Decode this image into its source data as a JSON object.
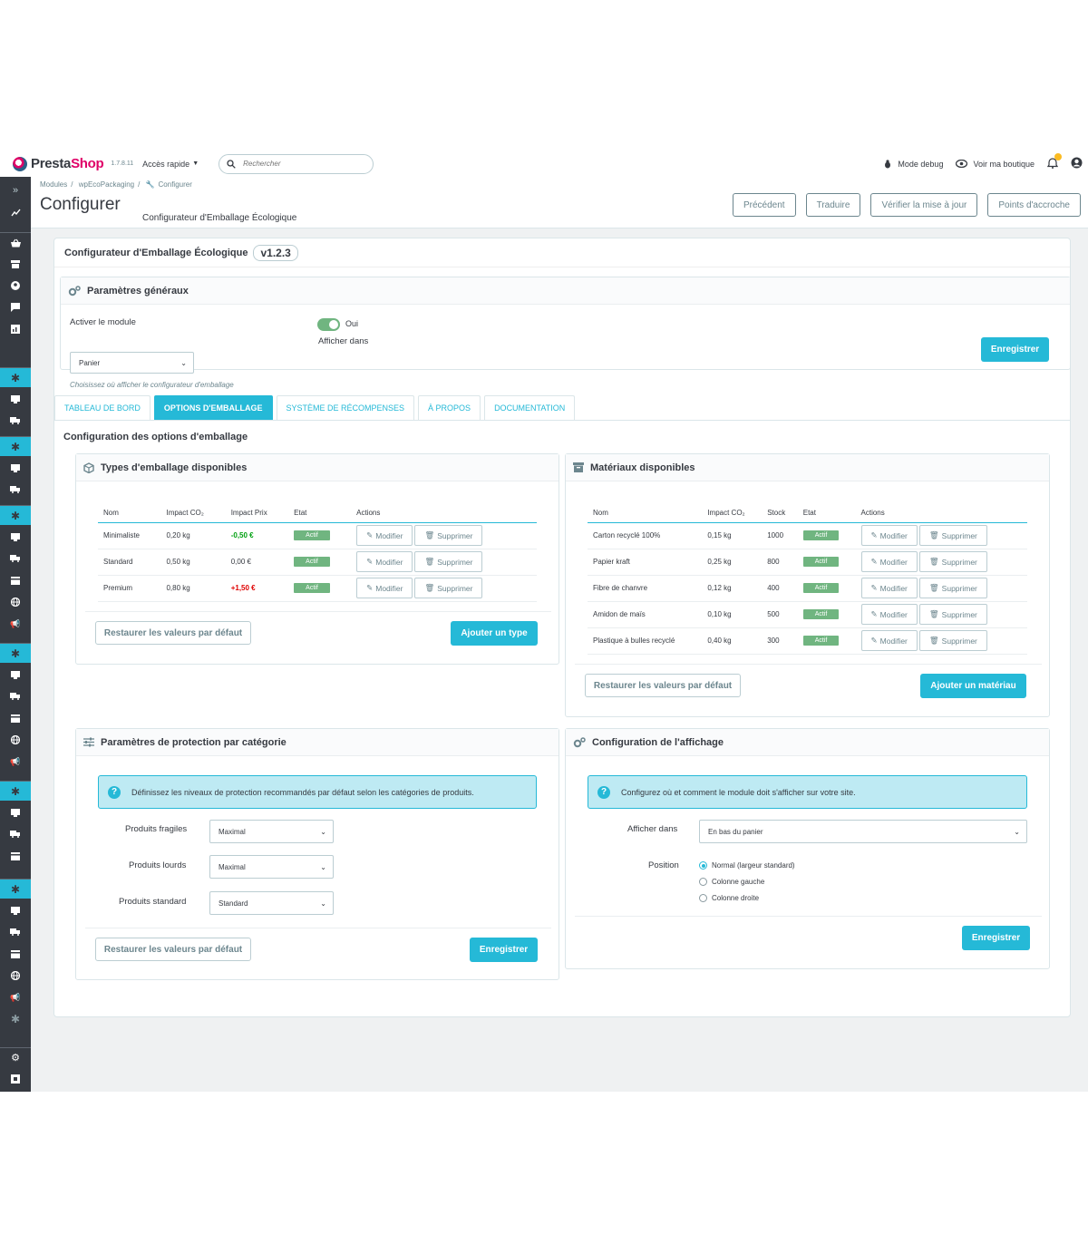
{
  "header": {
    "brand_a": "Presta",
    "brand_b": "Shop",
    "version": "1.7.8.11",
    "quick_access": "Accès rapide",
    "search_placeholder": "Rechercher",
    "debug": "Mode debug",
    "shop": "Voir ma boutique"
  },
  "breadcrumb": {
    "a": "Modules",
    "b": "wpEcoPackaging",
    "c": "Configurer"
  },
  "page": {
    "title": "Configurer",
    "subtitle": "Configurateur d'Emballage Écologique",
    "buttons": [
      "Précédent",
      "Traduire",
      "Vérifier la mise à jour",
      "Points d'accroche"
    ]
  },
  "module": {
    "title": "Configurateur d'Emballage Écologique",
    "version": "v1.2.3"
  },
  "general": {
    "title": "Paramètres généraux",
    "enable_label": "Activer le module",
    "enable_value": "Oui",
    "show_in": "Afficher dans",
    "select_value": "Panier",
    "help": "Choisissez où afficher le configurateur d'emballage",
    "save": "Enregistrer"
  },
  "tabs": [
    "TABLEAU DE BORD",
    "OPTIONS D'EMBALLAGE",
    "SYSTÈME DE RÉCOMPENSES",
    "À PROPOS",
    "DOCUMENTATION"
  ],
  "section_title": "Configuration des options d'emballage",
  "types": {
    "title": "Types d'emballage disponibles",
    "headers": [
      "Nom",
      "Impact CO₂",
      "Impact Prix",
      "Etat",
      "Actions"
    ],
    "rows": [
      {
        "name": "Minimaliste",
        "co2": "0,20 kg",
        "price": "-0,50 €",
        "state": "Actif"
      },
      {
        "name": "Standard",
        "co2": "0,50 kg",
        "price": "0,00 €",
        "state": "Actif"
      },
      {
        "name": "Premium",
        "co2": "0,80 kg",
        "price": "+1,50 €",
        "state": "Actif"
      }
    ],
    "edit": "Modifier",
    "delete": "Supprimer",
    "restore": "Restaurer les valeurs par défaut",
    "add": "Ajouter un type"
  },
  "materials": {
    "title": "Matériaux disponibles",
    "headers": [
      "Nom",
      "Impact CO₂",
      "Stock",
      "Etat",
      "Actions"
    ],
    "rows": [
      {
        "name": "Carton recyclé 100%",
        "co2": "0,15 kg",
        "stock": "1000",
        "state": "Actif"
      },
      {
        "name": "Papier kraft",
        "co2": "0,25 kg",
        "stock": "800",
        "state": "Actif"
      },
      {
        "name": "Fibre de chanvre",
        "co2": "0,12 kg",
        "stock": "400",
        "state": "Actif"
      },
      {
        "name": "Amidon de maïs",
        "co2": "0,10 kg",
        "stock": "500",
        "state": "Actif"
      },
      {
        "name": "Plastique à bulles recyclé",
        "co2": "0,40 kg",
        "stock": "300",
        "state": "Actif"
      }
    ],
    "edit": "Modifier",
    "delete": "Supprimer",
    "restore": "Restaurer les valeurs par défaut",
    "add": "Ajouter un matériau"
  },
  "protection": {
    "title": "Paramètres de protection par catégorie",
    "info": "Définissez les niveaux de protection recommandés par défaut selon les catégories de produits.",
    "rows": [
      {
        "label": "Produits fragiles",
        "value": "Maximal"
      },
      {
        "label": "Produits lourds",
        "value": "Maximal"
      },
      {
        "label": "Produits standard",
        "value": "Standard"
      }
    ],
    "restore": "Restaurer les valeurs par défaut",
    "save": "Enregistrer"
  },
  "display": {
    "title": "Configuration de l'affichage",
    "info": "Configurez où et comment le module doit s'afficher sur votre site.",
    "show_label": "Afficher dans",
    "show_value": "En bas du panier",
    "position_label": "Position",
    "positions": [
      "Normal (largeur standard)",
      "Colonne gauche",
      "Colonne droite"
    ],
    "save": "Enregistrer"
  }
}
